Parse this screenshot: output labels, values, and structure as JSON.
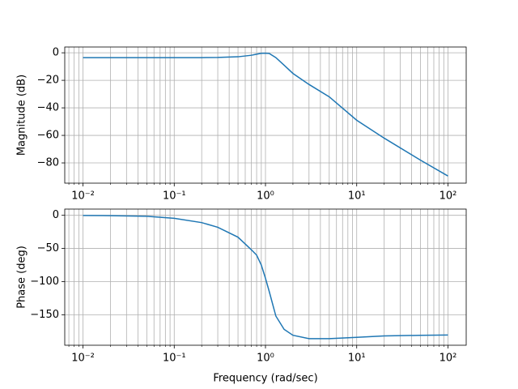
{
  "chart_data": [
    {
      "type": "line",
      "ylabel": "Magnitude (dB)",
      "log_x": true,
      "grid": true,
      "color": "#1f77b4",
      "x": [
        0.01,
        0.02,
        0.05,
        0.1,
        0.2,
        0.3,
        0.5,
        0.7,
        0.8,
        0.9,
        1.0,
        1.1,
        1.3,
        1.6,
        2,
        3,
        5,
        10,
        20,
        50,
        100
      ],
      "values": [
        -3.5,
        -3.5,
        -3.5,
        -3.5,
        -3.5,
        -3.4,
        -2.9,
        -1.8,
        -1.0,
        -0.4,
        -0.3,
        -0.5,
        -3.5,
        -9,
        -15,
        -23,
        -32,
        -49,
        -62,
        -78,
        -89.5
      ],
      "xlim": [
        0.00631,
        158.5
      ],
      "ylim": [
        -94.7,
        4.2
      ],
      "xticks": [
        {
          "value": 0.01,
          "label": "10⁻²"
        },
        {
          "value": 0.1,
          "label": "10⁻¹"
        },
        {
          "value": 1,
          "label": "10⁰"
        },
        {
          "value": 10,
          "label": "10¹"
        },
        {
          "value": 100,
          "label": "10²"
        }
      ],
      "xminorticks": [
        0.007,
        0.008,
        0.009,
        0.02,
        0.03,
        0.04,
        0.05,
        0.06,
        0.07,
        0.08,
        0.09,
        0.2,
        0.3,
        0.4,
        0.5,
        0.6,
        0.7,
        0.8,
        0.9,
        2,
        3,
        4,
        5,
        6,
        7,
        8,
        9,
        20,
        30,
        40,
        50,
        60,
        70,
        80,
        90
      ],
      "yticks": [
        0,
        {
          "value": -20,
          "label": "−20"
        },
        {
          "value": -40,
          "label": "−40"
        },
        {
          "value": -60,
          "label": "−60"
        },
        {
          "value": -80,
          "label": "−80"
        }
      ]
    },
    {
      "type": "line",
      "ylabel": "Phase (deg)",
      "xlabel": "Frequency (rad/sec)",
      "log_x": true,
      "grid": true,
      "color": "#1f77b4",
      "x": [
        0.01,
        0.02,
        0.05,
        0.1,
        0.2,
        0.3,
        0.5,
        0.7,
        0.8,
        0.9,
        1.0,
        1.1,
        1.3,
        1.6,
        2,
        3,
        5,
        10,
        20,
        50,
        100
      ],
      "values": [
        -0.2,
        -0.5,
        -1.5,
        -4.5,
        -11,
        -18,
        -33,
        -52,
        -60,
        -75,
        -95,
        -115,
        -152,
        -172,
        -181,
        -186,
        -186,
        -184,
        -182,
        -181,
        -180.5
      ],
      "xlim": [
        0.00631,
        158.5
      ],
      "ylim": [
        -196,
        9.4
      ],
      "xticks": [
        {
          "value": 0.01,
          "label": "10⁻²"
        },
        {
          "value": 0.1,
          "label": "10⁻¹"
        },
        {
          "value": 1,
          "label": "10⁰"
        },
        {
          "value": 10,
          "label": "10¹"
        },
        {
          "value": 100,
          "label": "10²"
        }
      ],
      "xminorticks": [
        0.007,
        0.008,
        0.009,
        0.02,
        0.03,
        0.04,
        0.05,
        0.06,
        0.07,
        0.08,
        0.09,
        0.2,
        0.3,
        0.4,
        0.5,
        0.6,
        0.7,
        0.8,
        0.9,
        2,
        3,
        4,
        5,
        6,
        7,
        8,
        9,
        20,
        30,
        40,
        50,
        60,
        70,
        80,
        90
      ],
      "yticks": [
        0,
        {
          "value": -50,
          "label": "−50"
        },
        {
          "value": -100,
          "label": "−100"
        },
        {
          "value": -150,
          "label": "−150"
        }
      ]
    }
  ]
}
